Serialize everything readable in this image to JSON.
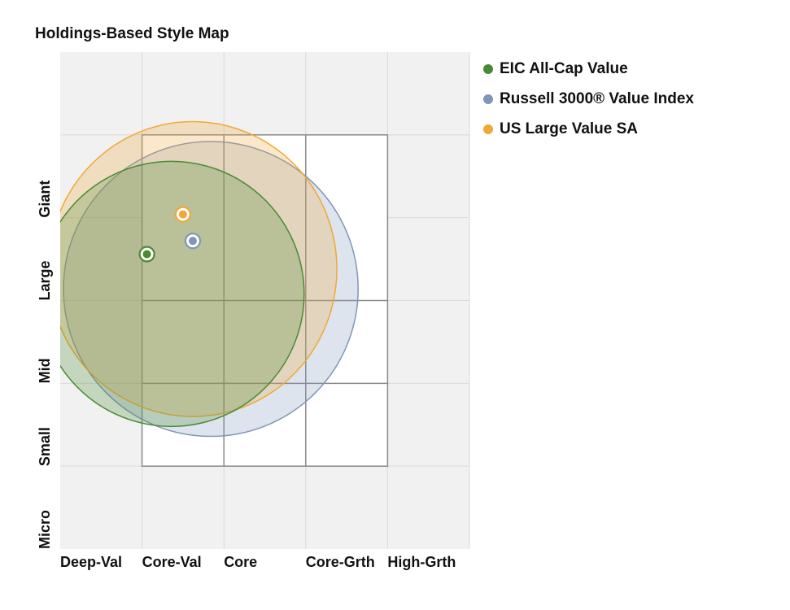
{
  "chart_data": {
    "type": "scatter",
    "title": "Holdings-Based Style Map",
    "x_categories": [
      "Deep-Val",
      "Core-Val",
      "Core",
      "Core-Grth",
      "High-Grth"
    ],
    "y_categories": [
      "Micro",
      "Small",
      "Mid",
      "Large",
      "Giant"
    ],
    "xlim": [
      -1.0,
      1.5
    ],
    "ylim": [
      -1.5,
      1.5
    ],
    "style_box": {
      "x": [
        -0.5,
        1.0
      ],
      "y": [
        -1.0,
        1.0
      ]
    },
    "grid": true,
    "legend_position": "right",
    "series": [
      {
        "name": "EIC All-Cap Value",
        "color": "#4a8a34",
        "point": {
          "x": -0.47,
          "y": 0.28
        },
        "ellipse": {
          "cx": -0.32,
          "cy": 0.04,
          "rx": 0.81,
          "ry": 0.8,
          "rotation": -27
        }
      },
      {
        "name": "Russell 3000® Value Index",
        "color": "#7f96b8",
        "point": {
          "x": -0.19,
          "y": 0.36
        },
        "ellipse": {
          "cx": -0.08,
          "cy": 0.07,
          "rx": 0.9,
          "ry": 0.89,
          "rotation": 0
        }
      },
      {
        "name": "US Large Value SA",
        "color": "#f0a836",
        "point": {
          "x": -0.25,
          "y": 0.52
        },
        "ellipse": {
          "cx": -0.19,
          "cy": 0.19,
          "rx": 0.88,
          "ry": 0.89,
          "rotation": 0
        }
      }
    ]
  }
}
